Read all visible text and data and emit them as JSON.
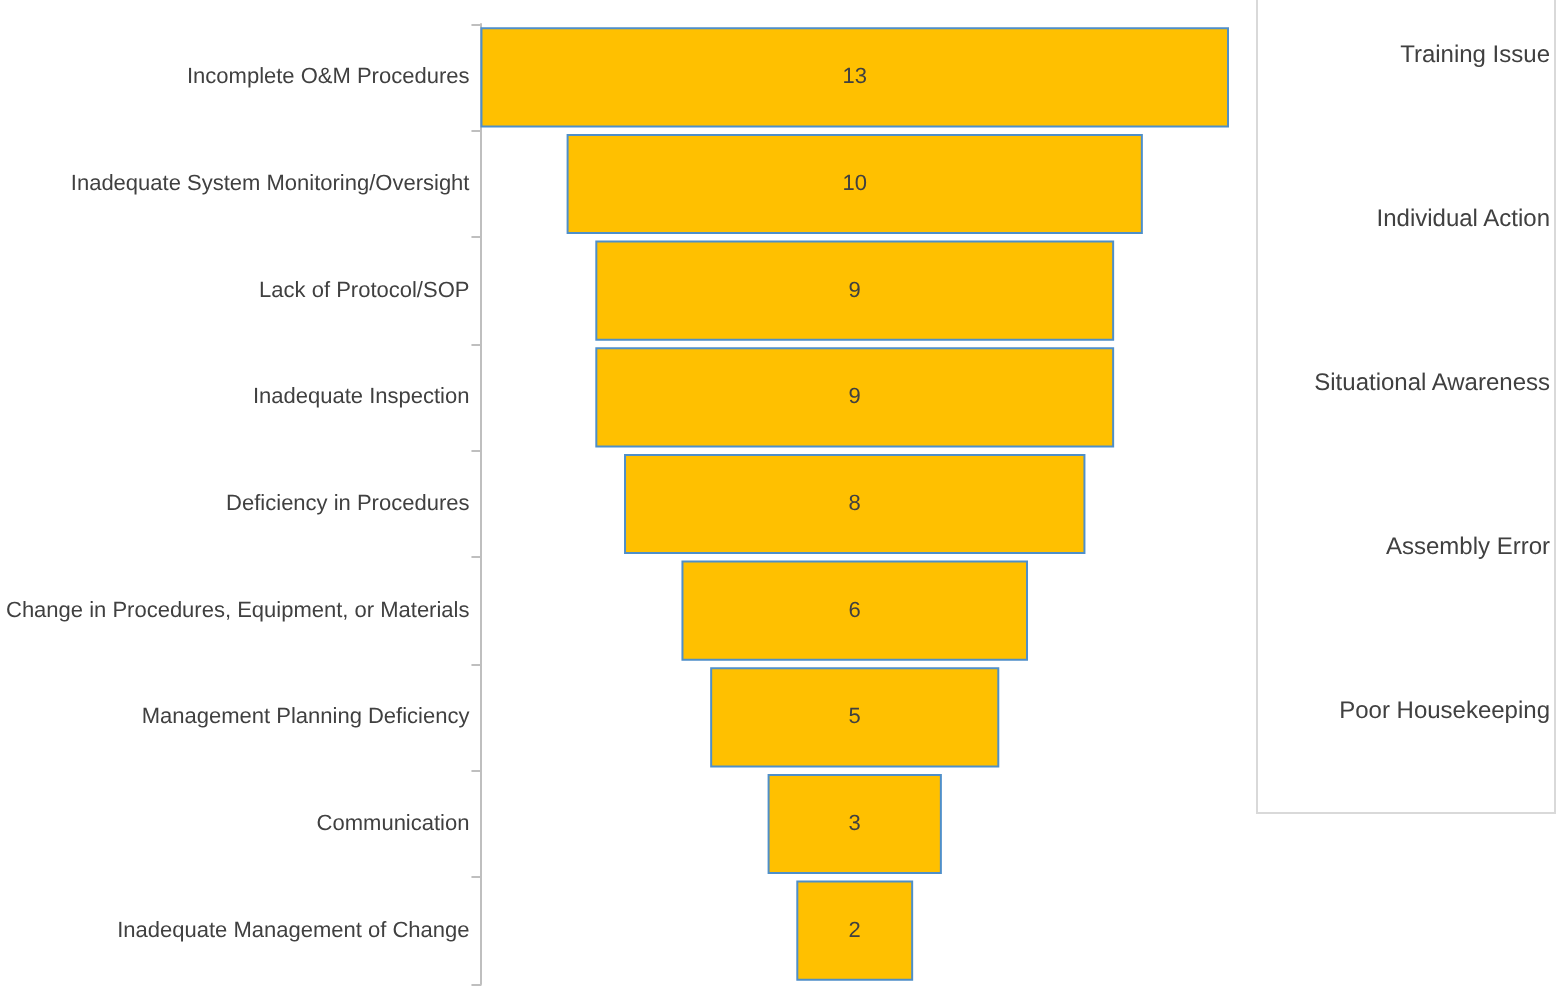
{
  "chart_data": [
    {
      "type": "other",
      "categories": [
        "Incomplete O&M Procedures",
        "Inadequate System Monitoring/Oversight",
        "Lack of Protocol/SOP",
        "Inadequate Inspection",
        "Deficiency in Procedures",
        "Change in Procedures, Equipment, or Materials",
        "Management Planning Deficiency",
        "Communication",
        "Inadequate Management of Change"
      ],
      "values": [
        13,
        10,
        9,
        9,
        8,
        6,
        5,
        3,
        2
      ],
      "color": "#ffc000",
      "data_labels": true
    },
    {
      "type": "other",
      "annotations": [
        "Training Issue",
        "Individual Action",
        "Situational Awareness",
        "Assembly Error",
        "Poor Housekeeping"
      ]
    }
  ]
}
